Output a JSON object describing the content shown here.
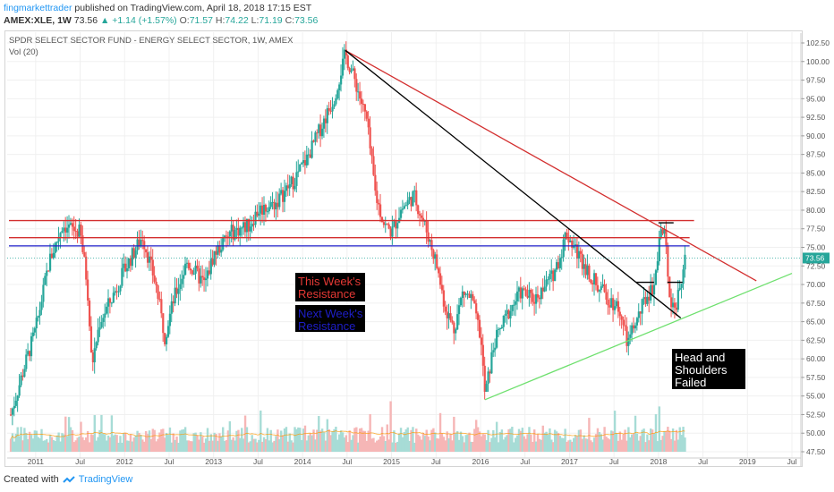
{
  "header": {
    "author": "fingmarkettrader",
    "published": "published on TradingView.com, April 18, 2018 17:15 EST",
    "symbol": "AMEX:XLE, 1W",
    "last": "73.56",
    "change_arrow": "▲",
    "change": "+1.14 (+1.57%)",
    "o_label": "O:",
    "o": "71.57",
    "h_label": "H:",
    "h": "74.22",
    "l_label": "L:",
    "l": "71.19",
    "c_label": "C:",
    "c": "73.56"
  },
  "legend": {
    "title": "SPDR SELECT SECTOR FUND - ENERGY SELECT SECTOR, 1W, AMEX",
    "vol": "Vol (20)"
  },
  "footer": {
    "created_with": "Created with",
    "brand": "TradingView"
  },
  "colors": {
    "up": "#26a69a",
    "down": "#ef5350",
    "vol_up": "#a7dcd6",
    "vol_down": "#f6b6b6",
    "vol_ma": "#ff9800",
    "resistance_red": "#d32f2f",
    "resistance_blue": "#1e1ec8",
    "support_green": "#6ee06e",
    "downtrend_black": "#000000",
    "price_tag": "#26a69a"
  },
  "chart_data": {
    "type": "candlestick",
    "title": "SPDR SELECT SECTOR FUND - ENERGY SELECT SECTOR, 1W, AMEX",
    "symbol": "AMEX:XLE",
    "interval": "1W",
    "ylim": [
      47.5,
      102.5
    ],
    "y_ticks": [
      "102.50",
      "100.00",
      "97.50",
      "95.00",
      "92.50",
      "90.00",
      "87.50",
      "85.00",
      "82.50",
      "80.00",
      "77.50",
      "75.00",
      "72.50",
      "70.00",
      "67.50",
      "65.00",
      "62.50",
      "60.00",
      "57.50",
      "55.00",
      "52.50",
      "50.00",
      "47.50"
    ],
    "x_ticks": [
      "2011",
      "Jul",
      "2012",
      "Jul",
      "2013",
      "Jul",
      "2014",
      "Jul",
      "2015",
      "Jul",
      "2016",
      "Jul",
      "2017",
      "Jul",
      "2018",
      "Jul",
      "2019",
      "Jul"
    ],
    "x_range": [
      2010.7,
      2019.5
    ],
    "price_path": [
      [
        2010.72,
        52.5
      ],
      [
        2010.85,
        58
      ],
      [
        2011.0,
        64
      ],
      [
        2011.15,
        73
      ],
      [
        2011.3,
        78
      ],
      [
        2011.5,
        77
      ],
      [
        2011.58,
        70
      ],
      [
        2011.63,
        59
      ],
      [
        2011.72,
        65
      ],
      [
        2011.85,
        68
      ],
      [
        2012.0,
        72
      ],
      [
        2012.2,
        76.5
      ],
      [
        2012.35,
        70
      ],
      [
        2012.45,
        63
      ],
      [
        2012.55,
        68
      ],
      [
        2012.7,
        73
      ],
      [
        2012.9,
        70
      ],
      [
        2013.0,
        74
      ],
      [
        2013.2,
        77
      ],
      [
        2013.4,
        78
      ],
      [
        2013.5,
        80
      ],
      [
        2013.7,
        81
      ],
      [
        2013.9,
        84
      ],
      [
        2014.05,
        87
      ],
      [
        2014.2,
        91
      ],
      [
        2014.35,
        95
      ],
      [
        2014.48,
        101
      ],
      [
        2014.6,
        97
      ],
      [
        2014.72,
        92
      ],
      [
        2014.82,
        82
      ],
      [
        2014.92,
        78
      ],
      [
        2015.0,
        77
      ],
      [
        2015.1,
        80
      ],
      [
        2015.25,
        82
      ],
      [
        2015.4,
        77
      ],
      [
        2015.5,
        73
      ],
      [
        2015.6,
        67
      ],
      [
        2015.7,
        64
      ],
      [
        2015.8,
        69
      ],
      [
        2015.9,
        68
      ],
      [
        2016.0,
        63
      ],
      [
        2016.05,
        55
      ],
      [
        2016.15,
        62
      ],
      [
        2016.3,
        66
      ],
      [
        2016.45,
        69
      ],
      [
        2016.6,
        68
      ],
      [
        2016.8,
        71
      ],
      [
        2016.9,
        74
      ],
      [
        2016.96,
        77
      ],
      [
        2017.1,
        74
      ],
      [
        2017.3,
        70
      ],
      [
        2017.45,
        68
      ],
      [
        2017.55,
        67
      ],
      [
        2017.65,
        62
      ],
      [
        2017.75,
        65
      ],
      [
        2017.85,
        68
      ],
      [
        2017.95,
        70
      ],
      [
        2018.02,
        77.5
      ],
      [
        2018.08,
        76
      ],
      [
        2018.13,
        68
      ],
      [
        2018.2,
        67
      ],
      [
        2018.27,
        71.5
      ],
      [
        2018.3,
        73.56
      ]
    ],
    "price_tag": "73.56",
    "volume_ma_visible": true,
    "annotations": {
      "this_week_resistance": "This Week's Resistance",
      "next_week_resistance": "Next Week's Resistance",
      "head_shoulders": "Head and Shoulders Failed"
    },
    "lines": [
      {
        "name": "resistance-red-upper",
        "color": "#d32f2f",
        "from": [
          2010.7,
          78.6
        ],
        "to": [
          2018.4,
          78.6
        ]
      },
      {
        "name": "resistance-red-lower",
        "color": "#d32f2f",
        "from": [
          2010.7,
          76.3
        ],
        "to": [
          2018.35,
          76.3
        ]
      },
      {
        "name": "resistance-blue",
        "color": "#1e1ec8",
        "from": [
          2010.7,
          75.2
        ],
        "to": [
          2018.35,
          75.2
        ]
      },
      {
        "name": "trendline-red",
        "color": "#d32f2f",
        "from": [
          2014.48,
          101.5
        ],
        "to": [
          2019.1,
          70.5
        ]
      },
      {
        "name": "trendline-black",
        "color": "#000000",
        "from": [
          2014.48,
          101.5
        ],
        "to": [
          2018.25,
          65.5
        ]
      },
      {
        "name": "support-green",
        "color": "#6ee06e",
        "from": [
          2016.05,
          54.5
        ],
        "to": [
          2019.5,
          71.5
        ]
      },
      {
        "name": "neckline-left",
        "color": "#000000",
        "from": [
          2017.75,
          70.3
        ],
        "to": [
          2017.95,
          70.3
        ]
      },
      {
        "name": "neckline-right",
        "color": "#000000",
        "from": [
          2018.1,
          70.3
        ],
        "to": [
          2018.27,
          70.3
        ]
      },
      {
        "name": "head-top",
        "color": "#000000",
        "from": [
          2018.0,
          78.3
        ],
        "to": [
          2018.17,
          78.3
        ]
      }
    ]
  }
}
